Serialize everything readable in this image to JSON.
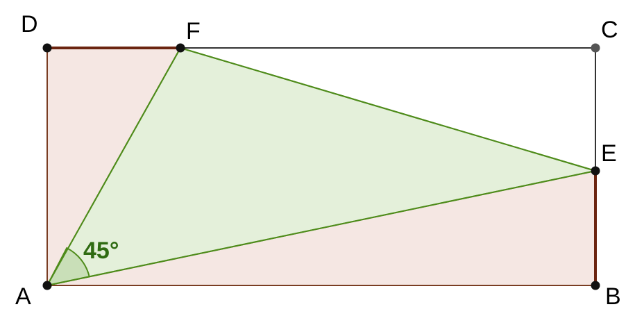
{
  "figure": {
    "points": {
      "A": "A",
      "B": "B",
      "C": "C",
      "D": "D",
      "E": "E",
      "F": "F"
    },
    "angle_label": "45°"
  },
  "colors": {
    "rect_fill": "#f5e7e3",
    "rect_edge": "#7a3d23",
    "rect_edge_bold": "#6b2410",
    "triangle_fill": "#e4f0da",
    "triangle_edge": "#4e8b1a",
    "angle_fill": "#c9dfb8",
    "angle_text": "#2f6b12",
    "side_line": "#333333",
    "point_dark": "#111111",
    "point_grey": "#555555"
  }
}
